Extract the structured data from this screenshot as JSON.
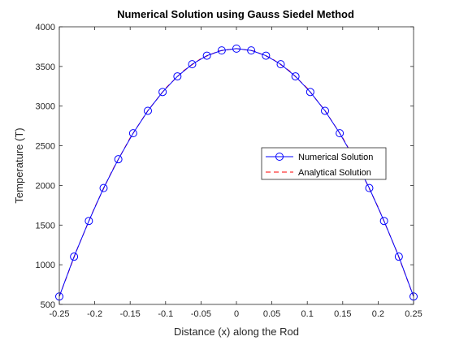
{
  "chart_data": {
    "type": "line",
    "title": "Numerical Solution using Gauss Siedel Method",
    "xlabel": "Distance (x) along the Rod",
    "ylabel": "Temperature (T)",
    "xlim": [
      -0.25,
      0.25
    ],
    "ylim": [
      500,
      4000
    ],
    "xticks": [
      -0.25,
      -0.2,
      -0.15,
      -0.1,
      -0.05,
      0,
      0.05,
      0.1,
      0.15,
      0.2,
      0.25
    ],
    "xtick_labels": [
      "-0.25",
      "-0.2",
      "-0.15",
      "-0.1",
      "-0.05",
      "0",
      "0.05",
      "0.1",
      "0.15",
      "0.2",
      "0.25"
    ],
    "yticks": [
      500,
      1000,
      1500,
      2000,
      2500,
      3000,
      3500,
      4000
    ],
    "ytick_labels": [
      "500",
      "1000",
      "1500",
      "2000",
      "2500",
      "3000",
      "3500",
      "4000"
    ],
    "grid": false,
    "legend_position": "center-right",
    "series": [
      {
        "name": "Numerical Solution",
        "style": "solid-line-circle-markers",
        "color": "#0000ff",
        "x": [
          -0.25,
          -0.2292,
          -0.2083,
          -0.1875,
          -0.1667,
          -0.1458,
          -0.125,
          -0.1042,
          -0.0833,
          -0.0625,
          -0.0417,
          -0.0208,
          0,
          0.0208,
          0.0417,
          0.0625,
          0.0833,
          0.1042,
          0.125,
          0.1458,
          0.1667,
          0.1875,
          0.2083,
          0.2292,
          0.25
        ],
        "y": [
          600,
          1102,
          1552,
          1967,
          2330,
          2658,
          2941,
          3178,
          3375,
          3528,
          3636,
          3702,
          3725,
          3702,
          3636,
          3528,
          3375,
          3178,
          2941,
          2658,
          2330,
          1967,
          1552,
          1102,
          600
        ]
      },
      {
        "name": "Analytical Solution",
        "style": "dashed-line",
        "color": "#ff0000",
        "x": [
          -0.25,
          -0.225,
          -0.2,
          -0.175,
          -0.15,
          -0.125,
          -0.1,
          -0.075,
          -0.05,
          -0.025,
          0,
          0.025,
          0.05,
          0.075,
          0.1,
          0.125,
          0.15,
          0.175,
          0.2,
          0.225,
          0.25
        ],
        "y": [
          600,
          1194,
          1725,
          2194,
          2600,
          2944,
          3225,
          3444,
          3600,
          3694,
          3725,
          3694,
          3600,
          3444,
          3225,
          2944,
          2600,
          2194,
          1725,
          1194,
          600
        ]
      }
    ]
  }
}
